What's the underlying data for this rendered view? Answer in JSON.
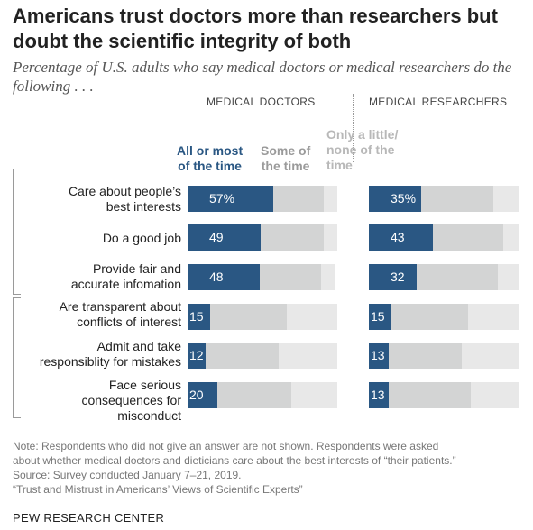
{
  "title": "Americans trust doctors more than researchers but doubt the scientific integrity of both",
  "subtitle": "Percentage of U.S. adults who say medical doctors or medical researchers do the following . . .",
  "columns": {
    "doctors": "MEDICAL DOCTORS",
    "researchers": "MEDICAL RESEARCHERS"
  },
  "legend": {
    "all_or_most": {
      "line1": "All or most",
      "line2": "of the time",
      "color": "#2a5783"
    },
    "some": {
      "line1": "Some of",
      "line2": "the time",
      "color": "#9a9a9a"
    },
    "little": {
      "line1": "Only a little/",
      "line2": "none of the",
      "line3": "time",
      "color": "#b8b8b8"
    }
  },
  "rows": [
    {
      "line1": "Care about people’s",
      "line2": "best interests"
    },
    {
      "line1": "Do a good job",
      "line2": ""
    },
    {
      "line1": "Provide fair and",
      "line2": "accurate infomation"
    },
    {
      "line1": "Are transparent about",
      "line2": "conflicts of interest"
    },
    {
      "line1": "Admit and take",
      "line2": "responsiblity for mistakes"
    },
    {
      "line1": "Face serious",
      "line2": "consequences for",
      "line3": "misconduct"
    }
  ],
  "chart_data": [
    {
      "type": "bar",
      "stacked": true,
      "orientation": "horizontal",
      "panel": "MEDICAL DOCTORS",
      "categories": [
        "Care about people’s best interests",
        "Do a good job",
        "Provide fair and accurate infomation",
        "Are transparent about conflicts of interest",
        "Admit and take responsiblity for mistakes",
        "Face serious consequences for misconduct"
      ],
      "series": [
        {
          "name": "All or most of the time",
          "values": [
            57,
            49,
            48,
            15,
            12,
            20
          ],
          "color": "#2a5783"
        },
        {
          "name": "Some of the time",
          "values": [
            34,
            42,
            41,
            51,
            49,
            49
          ],
          "color": "#d3d4d4"
        },
        {
          "name": "Only a little/ none of the time",
          "values": [
            9,
            9,
            10,
            34,
            39,
            31
          ],
          "color": "#e8e8e8"
        }
      ],
      "labels": [
        "57%",
        "49",
        "48",
        "15",
        "12",
        "20"
      ]
    },
    {
      "type": "bar",
      "stacked": true,
      "orientation": "horizontal",
      "panel": "MEDICAL RESEARCHERS",
      "categories": [
        "Care about people’s best interests",
        "Do a good job",
        "Provide fair and accurate infomation",
        "Are transparent about conflicts of interest",
        "Admit and take responsiblity for mistakes",
        "Face serious consequences for misconduct"
      ],
      "series": [
        {
          "name": "All or most of the time",
          "values": [
            35,
            43,
            32,
            15,
            13,
            13
          ],
          "color": "#2a5783"
        },
        {
          "name": "Some of the time",
          "values": [
            48,
            47,
            54,
            51,
            49,
            55
          ],
          "color": "#d3d4d4"
        },
        {
          "name": "Only a little/ none of the time",
          "values": [
            17,
            10,
            14,
            34,
            38,
            32
          ],
          "color": "#e8e8e8"
        }
      ],
      "labels": [
        "35%",
        "43",
        "32",
        "15",
        "13",
        "13"
      ]
    }
  ],
  "notes": {
    "line1": "Note: Respondents who did not give an answer are not shown. Respondents were asked",
    "line2": "about whether medical doctors and dieticians care about the best interests of “their patients.”",
    "line3": "Source: Survey conducted January 7–21, 2019.",
    "line4": "“Trust and Mistrust in Americans’ Views of Scientific Experts”"
  },
  "source_org": "PEW RESEARCH CENTER"
}
